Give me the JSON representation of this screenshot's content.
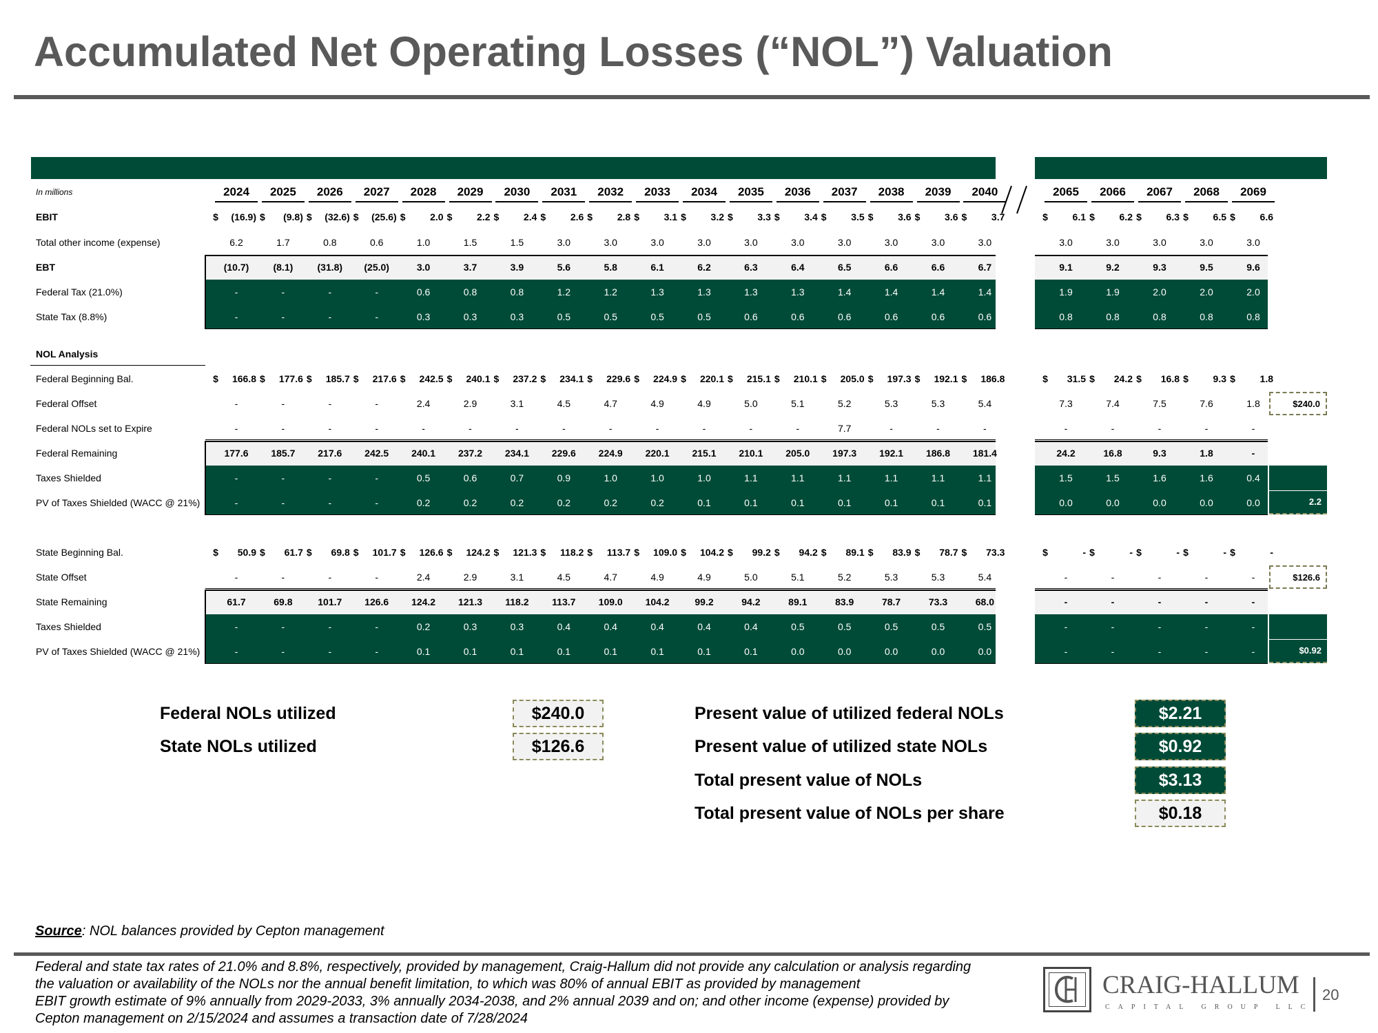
{
  "title": "Accumulated Net Operating Losses (“NOL”) Valuation",
  "table": {
    "units": "In millions",
    "years": [
      "2024",
      "2025",
      "2026",
      "2027",
      "2028",
      "2029",
      "2030",
      "2031",
      "2032",
      "2033",
      "2034",
      "2035",
      "2036",
      "2037",
      "2038",
      "2039",
      "2040",
      "2065",
      "2066",
      "2067",
      "2068",
      "2069"
    ],
    "rows": [
      {
        "label": "EBIT",
        "bold": true,
        "style": "plain",
        "dollar": true,
        "values": [
          "(16.9)",
          "(9.8)",
          "(32.6)",
          "(25.6)",
          "2.0",
          "2.2",
          "2.4",
          "2.6",
          "2.8",
          "3.1",
          "3.2",
          "3.3",
          "3.4",
          "3.5",
          "3.6",
          "3.6",
          "3.7",
          "6.1",
          "6.2",
          "6.3",
          "6.5",
          "6.6"
        ]
      },
      {
        "label": "Total other income (expense)",
        "bold": false,
        "style": "plain",
        "values": [
          "6.2",
          "1.7",
          "0.8",
          "0.6",
          "1.0",
          "1.5",
          "1.5",
          "3.0",
          "3.0",
          "3.0",
          "3.0",
          "3.0",
          "3.0",
          "3.0",
          "3.0",
          "3.0",
          "3.0",
          "3.0",
          "3.0",
          "3.0",
          "3.0",
          "3.0"
        ]
      },
      {
        "label": "EBT",
        "bold": true,
        "style": "light",
        "values": [
          "(10.7)",
          "(8.1)",
          "(31.8)",
          "(25.0)",
          "3.0",
          "3.7",
          "3.9",
          "5.6",
          "5.8",
          "6.1",
          "6.2",
          "6.3",
          "6.4",
          "6.5",
          "6.6",
          "6.6",
          "6.7",
          "9.1",
          "9.2",
          "9.3",
          "9.5",
          "9.6"
        ]
      },
      {
        "label": "Federal Tax (21.0%)",
        "bold": false,
        "style": "dark",
        "values": [
          "-",
          "-",
          "-",
          "-",
          "0.6",
          "0.8",
          "0.8",
          "1.2",
          "1.2",
          "1.3",
          "1.3",
          "1.3",
          "1.3",
          "1.4",
          "1.4",
          "1.4",
          "1.4",
          "1.9",
          "1.9",
          "2.0",
          "2.0",
          "2.0"
        ]
      },
      {
        "label": "State Tax (8.8%)",
        "bold": false,
        "style": "dark",
        "values": [
          "-",
          "-",
          "-",
          "-",
          "0.3",
          "0.3",
          "0.3",
          "0.5",
          "0.5",
          "0.5",
          "0.5",
          "0.6",
          "0.6",
          "0.6",
          "0.6",
          "0.6",
          "0.6",
          "0.8",
          "0.8",
          "0.8",
          "0.8",
          "0.8"
        ]
      },
      {
        "label": "NOL Analysis",
        "bold": true,
        "style": "header",
        "values": []
      },
      {
        "label": "Federal Beginning Bal.",
        "bold": false,
        "style": "plain",
        "dollar": true,
        "dbold": true,
        "values": [
          "166.8",
          "177.6",
          "185.7",
          "217.6",
          "242.5",
          "240.1",
          "237.2",
          "234.1",
          "229.6",
          "224.9",
          "220.1",
          "215.1",
          "210.1",
          "205.0",
          "197.3",
          "192.1",
          "186.8",
          "31.5",
          "24.2",
          "16.8",
          "9.3",
          "1.8"
        ]
      },
      {
        "label": "Federal Offset",
        "bold": false,
        "style": "plain",
        "values": [
          "-",
          "-",
          "-",
          "-",
          "2.4",
          "2.9",
          "3.1",
          "4.5",
          "4.7",
          "4.9",
          "4.9",
          "5.0",
          "5.1",
          "5.2",
          "5.3",
          "5.3",
          "5.4",
          "7.3",
          "7.4",
          "7.5",
          "7.6",
          "1.8"
        ]
      },
      {
        "label": "Federal NOLs set to Expire",
        "bold": false,
        "style": "plain",
        "underline": true,
        "values": [
          "-",
          "-",
          "-",
          "-",
          "-",
          "-",
          "-",
          "-",
          "-",
          "-",
          "-",
          "-",
          "-",
          "7.7",
          "-",
          "-",
          "-",
          "-",
          "-",
          "-",
          "-",
          "-"
        ]
      },
      {
        "label": "Federal Remaining",
        "bold": false,
        "style": "light",
        "dbold": true,
        "values": [
          "177.6",
          "185.7",
          "217.6",
          "242.5",
          "240.1",
          "237.2",
          "234.1",
          "229.6",
          "224.9",
          "220.1",
          "215.1",
          "210.1",
          "205.0",
          "197.3",
          "192.1",
          "186.8",
          "181.4",
          "24.2",
          "16.8",
          "9.3",
          "1.8",
          "-"
        ]
      },
      {
        "label": "Taxes Shielded",
        "bold": false,
        "style": "dark",
        "values": [
          "-",
          "-",
          "-",
          "-",
          "0.5",
          "0.6",
          "0.7",
          "0.9",
          "1.0",
          "1.0",
          "1.0",
          "1.1",
          "1.1",
          "1.1",
          "1.1",
          "1.1",
          "1.1",
          "1.5",
          "1.5",
          "1.6",
          "1.6",
          "0.4"
        ]
      },
      {
        "label": "PV of Taxes Shielded (WACC @ 21%)",
        "bold": false,
        "style": "dark",
        "values": [
          "-",
          "-",
          "-",
          "-",
          "0.2",
          "0.2",
          "0.2",
          "0.2",
          "0.2",
          "0.2",
          "0.1",
          "0.1",
          "0.1",
          "0.1",
          "0.1",
          "0.1",
          "0.1",
          "0.0",
          "0.0",
          "0.0",
          "0.0",
          "0.0"
        ]
      },
      {
        "label": "",
        "bold": false,
        "style": "spacer",
        "values": []
      },
      {
        "label": "State Beginning Bal.",
        "bold": false,
        "style": "plain",
        "dollar": true,
        "dbold": true,
        "values": [
          "50.9",
          "61.7",
          "69.8",
          "101.7",
          "126.6",
          "124.2",
          "121.3",
          "118.2",
          "113.7",
          "109.0",
          "104.2",
          "99.2",
          "94.2",
          "89.1",
          "83.9",
          "78.7",
          "73.3",
          "-",
          "-",
          "-",
          "-",
          "-"
        ]
      },
      {
        "label": "State Offset",
        "bold": false,
        "style": "plain",
        "underline": true,
        "values": [
          "-",
          "-",
          "-",
          "-",
          "2.4",
          "2.9",
          "3.1",
          "4.5",
          "4.7",
          "4.9",
          "4.9",
          "5.0",
          "5.1",
          "5.2",
          "5.3",
          "5.3",
          "5.4",
          "-",
          "-",
          "-",
          "-",
          "-"
        ]
      },
      {
        "label": "State Remaining",
        "bold": false,
        "style": "light",
        "dbold": true,
        "values": [
          "61.7",
          "69.8",
          "101.7",
          "126.6",
          "124.2",
          "121.3",
          "118.2",
          "113.7",
          "109.0",
          "104.2",
          "99.2",
          "94.2",
          "89.1",
          "83.9",
          "78.7",
          "73.3",
          "68.0",
          "-",
          "-",
          "-",
          "-",
          "-"
        ]
      },
      {
        "label": "Taxes Shielded",
        "bold": false,
        "style": "dark",
        "values": [
          "-",
          "-",
          "-",
          "-",
          "0.2",
          "0.3",
          "0.3",
          "0.4",
          "0.4",
          "0.4",
          "0.4",
          "0.4",
          "0.5",
          "0.5",
          "0.5",
          "0.5",
          "0.5",
          "-",
          "-",
          "-",
          "-",
          "-"
        ]
      },
      {
        "label": "PV of Taxes Shielded (WACC @ 21%)",
        "bold": false,
        "style": "dark",
        "values": [
          "-",
          "-",
          "-",
          "-",
          "0.1",
          "0.1",
          "0.1",
          "0.1",
          "0.1",
          "0.1",
          "0.1",
          "0.1",
          "0.0",
          "0.0",
          "0.0",
          "0.0",
          "0.0",
          "-",
          "-",
          "-",
          "-",
          "-"
        ]
      }
    ],
    "side_totals": [
      {
        "row": 7,
        "value": "$240.0",
        "style": "out"
      },
      {
        "row": 11,
        "value": "2.2",
        "style": "green"
      },
      {
        "row": 14,
        "value": "$126.6",
        "style": "out"
      },
      {
        "row": 17,
        "value": "$0.92",
        "style": "green"
      }
    ]
  },
  "summary": {
    "federal_utilized_label": "Federal NOLs utilized",
    "federal_utilized_value": "$240.0",
    "state_utilized_label": "State NOLs utilized",
    "state_utilized_value": "$126.6",
    "pv_federal_label": "Present value of utilized federal NOLs",
    "pv_federal_value": "$2.21",
    "pv_state_label": "Present value of utilized state NOLs",
    "pv_state_value": "$0.92",
    "total_pv_label": "Total present value of NOLs",
    "total_pv_value": "$3.13",
    "per_share_label": "Total present value of NOLs per share",
    "per_share_value": "$0.18"
  },
  "source": {
    "label": "Source",
    "text": ": NOL balances provided by Cepton management"
  },
  "footnotes": [
    "Federal and state tax rates of 21.0% and 8.8%, respectively, provided by management, Craig-Hallum did not provide any calculation or analysis regarding",
    "the valuation or availability of the NOLs nor the annual benefit limitation, to which was 80% of annual EBIT as provided by management",
    "EBIT growth estimate of 9% annually from 2029-2033, 3% annually 2034-2038, and 2% annual 2039 and on; and other income (expense) provided by",
    "Cepton management on 2/15/2024 and assumes a transaction date of 7/28/2024"
  ],
  "logo": {
    "name": "CRAIG-HALLUM",
    "sub": "CAPITAL GROUP LLC",
    "monogram": "CH"
  },
  "page_number": "20"
}
